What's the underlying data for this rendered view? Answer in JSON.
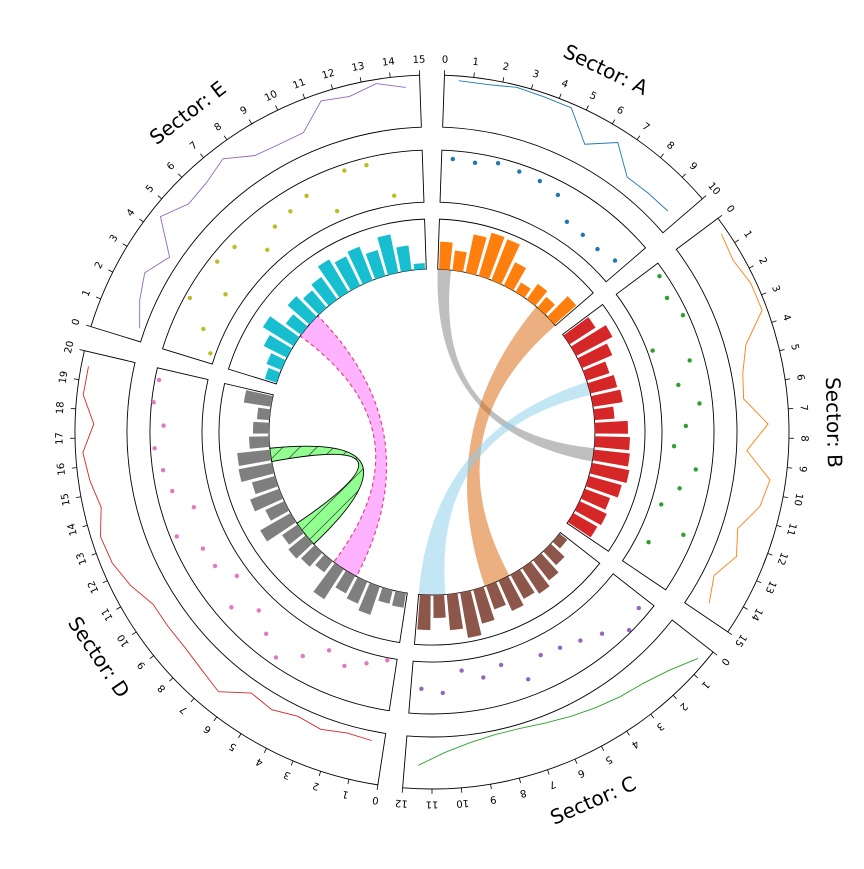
{
  "chart_data": {
    "type": "circos",
    "sectors": [
      {
        "name": "A",
        "label": "Sector: A",
        "range": [
          0,
          10
        ],
        "ticks": [
          "0",
          "1",
          "2",
          "3",
          "4",
          "5",
          "6",
          "7",
          "8",
          "9",
          "10"
        ],
        "color": "#1f77b4",
        "line": {
          "color": "#1f77b4",
          "ylim": [
            0,
            100
          ],
          "x": [
            0.5,
            1.5,
            2.5,
            3.5,
            4.5,
            5.5,
            6.5,
            7.5,
            8.5,
            9.5
          ],
          "y": [
            91,
            90,
            96,
            93,
            92,
            40,
            75,
            31,
            33,
            35
          ]
        },
        "scatter": {
          "color": "#1f77b4",
          "ylim": [
            0,
            100
          ],
          "x": [
            0.5,
            1.5,
            2.5,
            3.5,
            4.5,
            5.5,
            6.5,
            7.5,
            8.5,
            9.5
          ],
          "y": [
            84,
            82,
            90,
            86,
            83,
            74,
            38,
            35,
            32,
            40
          ]
        },
        "bars": {
          "color": "#ff7f0e",
          "ylim": [
            0,
            100
          ],
          "x": [
            0.5,
            1.5,
            2.5,
            3.5,
            4.5,
            5.5,
            6.5,
            7.5,
            8.5,
            9.5
          ],
          "y": [
            55,
            40,
            78,
            90,
            88,
            52,
            22,
            38,
            28,
            58
          ]
        }
      },
      {
        "name": "B",
        "label": "Sector: B",
        "range": [
          0,
          15
        ],
        "ticks": [
          "0",
          "1",
          "2",
          "3",
          "4",
          "5",
          "6",
          "7",
          "8",
          "9",
          "10",
          "11",
          "12",
          "13",
          "14",
          "15"
        ],
        "color": "#ff7f0e",
        "line": {
          "color": "#ff7f0e",
          "ylim": [
            0,
            100
          ],
          "x": [
            0.5,
            1.5,
            2.5,
            3.5,
            4.5,
            5.5,
            6.5,
            7.5,
            8.5,
            9.5,
            10.5,
            11.5,
            12.5,
            13.5,
            14.5
          ],
          "y": [
            88,
            80,
            90,
            90,
            40,
            22,
            16,
            60,
            20,
            70,
            60,
            30,
            46,
            22,
            40
          ]
        },
        "scatter": {
          "color": "#2ca02c",
          "ylim": [
            0,
            100
          ],
          "x": [
            0.5,
            1.5,
            2.5,
            3.5,
            4.5,
            5.5,
            6.5,
            7.5,
            8.5,
            9.5,
            10.5,
            11.5,
            12.5,
            13.5
          ],
          "y": [
            88,
            78,
            90,
            10,
            72,
            40,
            75,
            46,
            24,
            70,
            46,
            20,
            80,
            25
          ]
        },
        "bars": {
          "color": "#d62728",
          "ylim": [
            0,
            100
          ],
          "x": [
            0.5,
            1.5,
            2.5,
            3.5,
            4.5,
            5.5,
            6.5,
            7.5,
            8.5,
            9.5,
            10.5,
            11.5,
            12.5,
            13.5,
            14.5
          ],
          "y": [
            62,
            82,
            66,
            48,
            55,
            60,
            40,
            66,
            70,
            72,
            76,
            68,
            54,
            60,
            55
          ]
        }
      },
      {
        "name": "C",
        "label": "Sector: C",
        "range": [
          0,
          12
        ],
        "ticks": [
          "0",
          "1",
          "2",
          "3",
          "4",
          "5",
          "6",
          "7",
          "8",
          "9",
          "10",
          "11",
          "12"
        ],
        "color": "#2ca02c",
        "line": {
          "color": "#2ca02c",
          "ylim": [
            0,
            100
          ],
          "x": [
            0.5,
            1.5,
            2.5,
            3.5,
            4.5,
            5.5,
            6.5,
            7.5,
            8.5,
            9.5,
            10.5,
            11.5
          ],
          "y": [
            85,
            60,
            45,
            38,
            30,
            22,
            14,
            8,
            8,
            15,
            30,
            55
          ]
        },
        "scatter": {
          "color": "#9467bd",
          "ylim": [
            0,
            100
          ],
          "x": [
            0.5,
            1.5,
            2.5,
            3.5,
            4.5,
            5.5,
            6.5,
            7.5,
            8.5,
            9.5,
            10.5,
            11.5
          ],
          "y": [
            80,
            95,
            65,
            50,
            40,
            35,
            68,
            25,
            40,
            20,
            60,
            52
          ]
        },
        "bars": {
          "color": "#8c564b",
          "ylim": [
            0,
            100
          ],
          "x": [
            0.5,
            1.5,
            2.5,
            3.5,
            4.5,
            5.5,
            6.5,
            7.5,
            8.5,
            9.5,
            10.5,
            11.5
          ],
          "y": [
            20,
            38,
            52,
            62,
            55,
            66,
            50,
            70,
            92,
            72,
            46,
            70
          ]
        }
      },
      {
        "name": "D",
        "label": "Sector: D",
        "range": [
          0,
          20
        ],
        "ticks": [
          "0",
          "1",
          "2",
          "3",
          "4",
          "5",
          "6",
          "7",
          "8",
          "9",
          "10",
          "11",
          "12",
          "13",
          "14",
          "15",
          "16",
          "17",
          "18",
          "19",
          "20"
        ],
        "color": "#d62728",
        "line": {
          "color": "#d62728",
          "ylim": [
            0,
            100
          ],
          "x": [
            0.5,
            1.5,
            2.5,
            3.5,
            4.5,
            5.5,
            6.5,
            7.5,
            8.5,
            9.5,
            10.5,
            11.5,
            12.5,
            13.5,
            14.5,
            15.5,
            16.5,
            17.5,
            18.5,
            19.5
          ],
          "y": [
            18,
            15,
            24,
            18,
            30,
            24,
            60,
            50,
            44,
            44,
            44,
            64,
            78,
            82,
            66,
            78,
            86,
            64,
            88,
            86
          ]
        },
        "scatter": {
          "color": "#e377c2",
          "ylim": [
            0,
            100
          ],
          "x": [
            0.5,
            1.5,
            2.5,
            3.5,
            4.5,
            5.5,
            6.5,
            7.5,
            8.5,
            9.5,
            10.5,
            11.5,
            12.5,
            13.5,
            14.5,
            15.5,
            16.5,
            17.5,
            18.5,
            19.5
          ],
          "y": [
            5,
            20,
            38,
            22,
            55,
            85,
            60,
            36,
            70,
            24,
            48,
            52,
            88,
            38,
            70,
            80,
            92,
            74,
            96,
            92
          ]
        },
        "bars": {
          "color": "#7f7f7f",
          "ylim": [
            0,
            100
          ],
          "x": [
            0.5,
            1.5,
            2.5,
            3.5,
            4.5,
            5.5,
            6.5,
            7.5,
            8.5,
            9.5,
            10.5,
            11.5,
            12.5,
            13.5,
            14.5,
            15.5,
            16.5,
            17.5,
            18.5,
            19.5
          ],
          "y": [
            30,
            28,
            60,
            48,
            40,
            72,
            28,
            38,
            45,
            38,
            70,
            42,
            62,
            48,
            68,
            66,
            40,
            32,
            25,
            55
          ]
        }
      },
      {
        "name": "E",
        "label": "Sector: E",
        "range": [
          0,
          15
        ],
        "ticks": [
          "0",
          "1",
          "2",
          "3",
          "4",
          "5",
          "6",
          "7",
          "8",
          "9",
          "10",
          "11",
          "12",
          "13",
          "14",
          "15"
        ],
        "color": "#9467bd",
        "line": {
          "color": "#9467bd",
          "ylim": [
            0,
            100
          ],
          "x": [
            0.5,
            1.5,
            2.5,
            3.5,
            4.5,
            5.5,
            6.5,
            7.5,
            8.5,
            9.5,
            10.5,
            11.5,
            12.5,
            13.5,
            14.5
          ],
          "y": [
            10,
            30,
            45,
            20,
            80,
            55,
            60,
            75,
            45,
            40,
            40,
            85,
            78,
            92,
            78
          ]
        },
        "scatter": {
          "color": "#bcbd22",
          "ylim": [
            0,
            100
          ],
          "x": [
            0.5,
            1.5,
            2.5,
            3.5,
            4.5,
            5.5,
            6.5,
            7.5,
            8.5,
            9.5,
            10.5,
            11.5,
            12.5,
            13.5
          ],
          "y": [
            10,
            40,
            90,
            35,
            85,
            78,
            30,
            55,
            62,
            72,
            20,
            88,
            86,
            18
          ]
        },
        "bars": {
          "color": "#17becf",
          "ylim": [
            0,
            100
          ],
          "x": [
            0.5,
            1.5,
            2.5,
            3.5,
            4.5,
            5.5,
            6.5,
            7.5,
            8.5,
            9.5,
            10.5,
            11.5,
            12.5,
            13.5,
            14.5
          ],
          "y": [
            25,
            32,
            52,
            72,
            38,
            58,
            45,
            55,
            76,
            65,
            72,
            54,
            78,
            50,
            12
          ]
        }
      }
    ],
    "links": [
      {
        "from": {
          "sector": "A",
          "range": [
            0,
            1
          ]
        },
        "to": {
          "sector": "B",
          "range": [
            9,
            10
          ]
        },
        "color": "#7f7f7f",
        "alpha": 0.5,
        "hatch": false
      },
      {
        "from": {
          "sector": "A",
          "range": [
            8,
            10
          ]
        },
        "to": {
          "sector": "C",
          "range": [
            5,
            7
          ]
        },
        "color": "#d95f02",
        "alpha": 0.5,
        "hatch": false
      },
      {
        "from": {
          "sector": "B",
          "range": [
            4,
            5
          ]
        },
        "to": {
          "sector": "C",
          "range": [
            10,
            12
          ]
        },
        "color": "#87ceeb",
        "alpha": 0.5,
        "hatch": false
      },
      {
        "from": {
          "sector": "D",
          "range": [
            4,
            6
          ]
        },
        "to": {
          "sector": "E",
          "range": [
            4,
            6
          ]
        },
        "color": "#ff00ff",
        "alpha": 0.3,
        "border": "#e8457a",
        "dashed": true,
        "hatch": false
      },
      {
        "from": {
          "sector": "D",
          "range": [
            8,
            10
          ]
        },
        "to": {
          "sector": "D",
          "range": [
            15,
            16
          ]
        },
        "color": "#00ff00",
        "alpha": 0.4,
        "border": "#000000",
        "hatch": true
      }
    ],
    "grid": false,
    "legend": "none"
  }
}
